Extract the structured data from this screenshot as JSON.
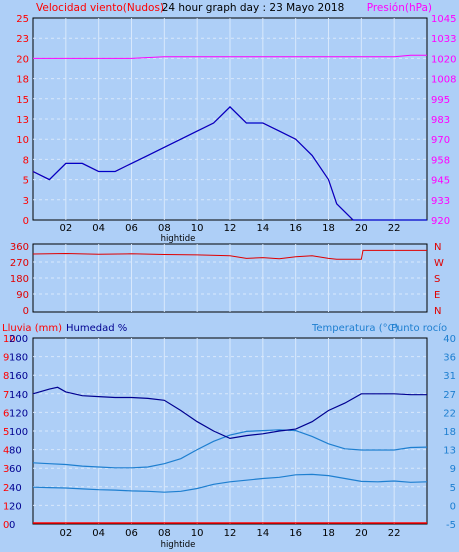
{
  "colors": {
    "background": "#aecff7",
    "wind": "#ff0000",
    "wind_avg": "#0000c8",
    "pressure": "#ff00ff",
    "direction": "#e00000",
    "humidity": "#000090",
    "temperature": "#1e7fd0",
    "dewpoint": "#1e7fd0",
    "rain": "#ff0000"
  },
  "chart_data": [
    {
      "type": "line",
      "title": "24 hour graph day : 23 Mayo 2018",
      "y_left_label": "Velocidad viento(Nudos)",
      "y_right_label": "Presión(hPa)",
      "x_ticks": [
        "02",
        "04",
        "06",
        "08",
        "10",
        "12",
        "14",
        "16",
        "18",
        "20",
        "22"
      ],
      "x_marker": "hightide",
      "x_range": [
        0,
        24
      ],
      "y_left_ticks": [
        "0",
        "3",
        "5",
        "8",
        "10",
        "13",
        "15",
        "18",
        "20",
        "23",
        "25"
      ],
      "y_left_range": [
        0,
        25
      ],
      "y_right_ticks": [
        "920",
        "933",
        "945",
        "958",
        "970",
        "983",
        "995",
        "1008",
        "1020",
        "1033",
        "1045"
      ],
      "y_right_range": [
        920,
        1045
      ],
      "series": [
        {
          "name": "Velocidad viento(Nudos)",
          "x": [
            0,
            1,
            2,
            3,
            4,
            5,
            6,
            7,
            8,
            9,
            10,
            11,
            12,
            13,
            14,
            15,
            16,
            17,
            18,
            18.5,
            19,
            19.5,
            20,
            24
          ],
          "values": [
            6,
            5,
            7,
            7,
            6,
            6,
            7,
            8,
            9,
            10,
            11,
            12,
            14,
            12,
            12,
            11,
            10,
            8,
            5,
            2,
            1,
            0,
            0,
            0
          ]
        },
        {
          "name": "Presión(hPa)",
          "x": [
            0,
            2,
            4,
            6,
            8,
            10,
            12,
            14,
            16,
            18,
            20,
            22,
            23,
            24
          ],
          "values": [
            1020,
            1020,
            1020,
            1020,
            1021,
            1021,
            1021,
            1021,
            1021,
            1021,
            1021,
            1021,
            1022,
            1022
          ]
        }
      ]
    },
    {
      "type": "line",
      "y_right_labels": [
        "N",
        "W",
        "S",
        "E",
        "N"
      ],
      "y_left_ticks": [
        "360",
        "270",
        "180",
        "90",
        "0"
      ],
      "y_range": [
        0,
        360
      ],
      "x_range": [
        0,
        24
      ],
      "series": [
        {
          "name": "Dirección",
          "x": [
            0,
            2,
            4,
            6,
            8,
            10,
            12,
            13,
            14,
            15,
            16,
            17,
            18,
            18.5,
            19,
            20,
            20.1,
            24
          ],
          "values": [
            315,
            318,
            314,
            316,
            312,
            310,
            305,
            290,
            295,
            288,
            300,
            305,
            290,
            285,
            285,
            285,
            335,
            335
          ]
        }
      ]
    },
    {
      "type": "line",
      "y_labels": [
        "Lluvia (mm)",
        "Humedad %",
        "Temperatura (°C)",
        "Punto rocío"
      ],
      "x_ticks": [
        "02",
        "04",
        "06",
        "08",
        "10",
        "12",
        "14",
        "16",
        "18",
        "20",
        "22"
      ],
      "x_marker": "hightide",
      "x_range": [
        0,
        24
      ],
      "y_rain_ticks": [
        "0",
        "1",
        "2",
        "3",
        "4",
        "5",
        "6",
        "7",
        "8",
        "9",
        "10"
      ],
      "y_humidity_ticks": [
        "0",
        "20",
        "40",
        "60",
        "80",
        "100",
        "120",
        "140",
        "160",
        "180",
        "200"
      ],
      "y_temp_ticks": [
        "-5",
        "0",
        "5",
        "9",
        "13",
        "18",
        "22",
        "27",
        "31",
        "36",
        "40"
      ],
      "y_temp_range": [
        -5,
        40
      ],
      "series": [
        {
          "name": "Humedad %",
          "x": [
            0,
            1,
            1.5,
            2,
            3,
            4,
            5,
            6,
            7,
            8,
            9,
            10,
            11,
            12,
            13,
            14,
            15,
            16,
            17,
            18,
            19,
            20,
            21,
            22,
            23,
            24
          ],
          "values": [
            140,
            145,
            147,
            142,
            138,
            137,
            136,
            136,
            135,
            133,
            122,
            110,
            100,
            92,
            95,
            97,
            100,
            102,
            110,
            122,
            130,
            140,
            140,
            140,
            139,
            139
          ]
        },
        {
          "name": "Temperatura (°C)",
          "x": [
            0,
            1,
            2,
            3,
            4,
            5,
            6,
            7,
            8,
            9,
            10,
            11,
            12,
            13,
            14,
            15,
            16,
            17,
            18,
            19,
            20,
            21,
            22,
            23,
            24
          ],
          "values": [
            9.8,
            9.6,
            9.4,
            9.0,
            8.8,
            8.6,
            8.6,
            8.8,
            9.6,
            10.8,
            13,
            15,
            16.5,
            17.4,
            17.6,
            17.8,
            17.6,
            16.2,
            14.4,
            13.2,
            12.9,
            12.9,
            12.9,
            13.5,
            13.6
          ]
        },
        {
          "name": "Punto rocío",
          "x": [
            0,
            1,
            2,
            3,
            4,
            5,
            6,
            7,
            8,
            9,
            10,
            11,
            12,
            13,
            14,
            15,
            16,
            17,
            18,
            19,
            20,
            21,
            22,
            23,
            24
          ],
          "values": [
            3.9,
            3.8,
            3.7,
            3.5,
            3.3,
            3.2,
            3.0,
            2.9,
            2.7,
            2.9,
            3.6,
            4.6,
            5.2,
            5.6,
            6.0,
            6.3,
            6.9,
            7.0,
            6.7,
            6.0,
            5.3,
            5.2,
            5.4,
            5.1,
            5.2
          ]
        },
        {
          "name": "Lluvia (mm)",
          "x": [
            0,
            24
          ],
          "values": [
            0,
            0
          ]
        }
      ]
    }
  ]
}
